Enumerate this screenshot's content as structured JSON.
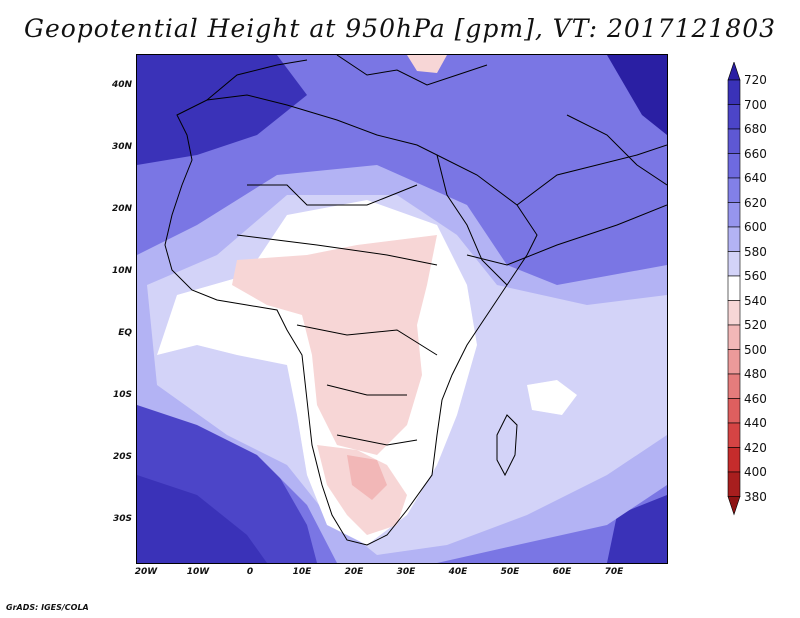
{
  "title": "Geopotential Height at 950hPa [gpm], VT: 2017121803",
  "credit": "GrADS: IGES/COLA",
  "map": {
    "lon_labels": [
      "20W",
      "10W",
      "0",
      "10E",
      "20E",
      "30E",
      "40E",
      "50E",
      "60E",
      "70E"
    ],
    "lon_values": [
      -20,
      -10,
      0,
      10,
      20,
      30,
      40,
      50,
      60,
      70
    ],
    "lat_labels": [
      "40N",
      "30N",
      "20N",
      "10N",
      "EQ",
      "10S",
      "20S",
      "30S"
    ],
    "lat_values": [
      40,
      30,
      20,
      10,
      0,
      -10,
      -20,
      -30
    ],
    "lon_range": [
      -22,
      80
    ],
    "lat_range": [
      -36.5,
      46
    ]
  },
  "colorbar": {
    "levels": [
      "720",
      "700",
      "680",
      "660",
      "640",
      "620",
      "600",
      "580",
      "560",
      "540",
      "520",
      "500",
      "480",
      "460",
      "440",
      "420",
      "400",
      "380"
    ],
    "colors": [
      "#2a1fa3",
      "#3a32b8",
      "#4c45c8",
      "#5e58d4",
      "#6e6ae0",
      "#8280e8",
      "#9695ee",
      "#b3b3f4",
      "#d3d3f8",
      "#ffffff",
      "#f7d6d6",
      "#f2b7b7",
      "#ec9a9a",
      "#e57c7c",
      "#de5f5f",
      "#d54444",
      "#c52c2c",
      "#a81e1e",
      "#8e1414"
    ]
  }
}
